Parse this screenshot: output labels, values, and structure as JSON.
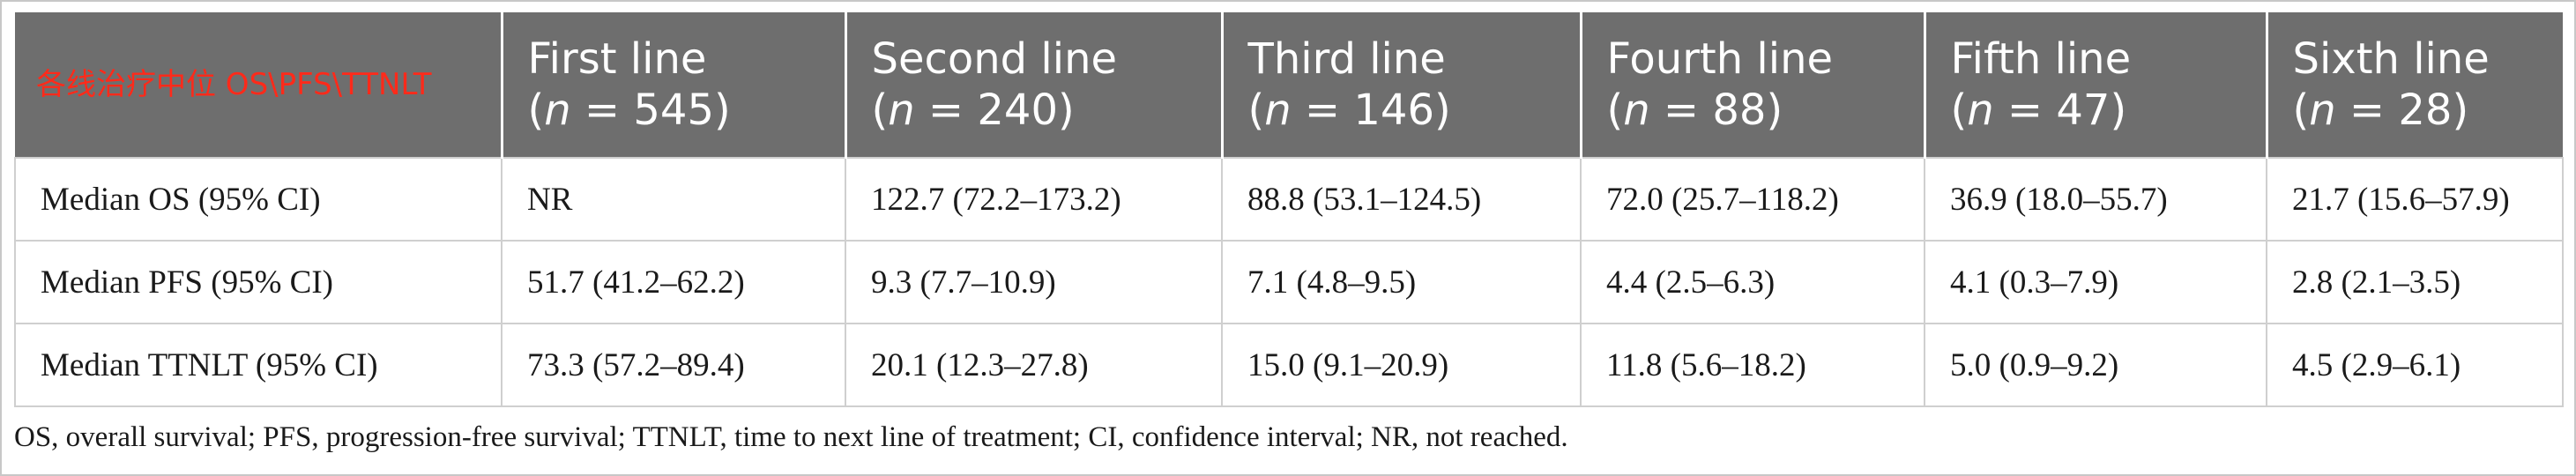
{
  "table": {
    "corner_label": "各线治疗中位 OS\\PFS\\TTNLT",
    "columns": [
      {
        "title": "First line",
        "n_prefix": "(",
        "n_var": "n",
        "n_value": " = 545)"
      },
      {
        "title": "Second line",
        "n_prefix": "(",
        "n_var": "n",
        "n_value": " = 240)"
      },
      {
        "title": "Third line",
        "n_prefix": "(",
        "n_var": "n",
        "n_value": " = 146)"
      },
      {
        "title": "Fourth line",
        "n_prefix": "(",
        "n_var": "n",
        "n_value": " = 88)"
      },
      {
        "title": "Fifth line",
        "n_prefix": "(",
        "n_var": "n",
        "n_value": " = 47)"
      },
      {
        "title": "Sixth line",
        "n_prefix": "(",
        "n_var": "n",
        "n_value": " = 28)"
      }
    ],
    "rows": [
      {
        "label": "Median OS (95% CI)",
        "cells": [
          "NR",
          "122.7 (72.2–173.2)",
          "88.8 (53.1–124.5)",
          "72.0 (25.7–118.2)",
          "36.9 (18.0–55.7)",
          "21.7 (15.6–57.9)"
        ]
      },
      {
        "label": "Median PFS (95% CI)",
        "cells": [
          "51.7 (41.2–62.2)",
          "9.3 (7.7–10.9)",
          "7.1 (4.8–9.5)",
          "4.4 (2.5–6.3)",
          "4.1 (0.3–7.9)",
          "2.8 (2.1–3.5)"
        ]
      },
      {
        "label": "Median TTNLT (95% CI)",
        "cells": [
          "73.3 (57.2–89.4)",
          "20.1 (12.3–27.8)",
          "15.0 (9.1–20.9)",
          "11.8 (5.6–18.2)",
          "5.0 (0.9–9.2)",
          "4.5 (2.9–6.1)"
        ]
      }
    ]
  },
  "footnote": "OS, overall survival; PFS, progression-free survival; TTNLT, time to next line of treatment; CI, confidence interval; NR, not reached.",
  "colors": {
    "header_bg": "#6e6e6e",
    "header_text": "#ffffff",
    "corner_text": "#ff2a1a",
    "grid": "#cfcfcf"
  }
}
